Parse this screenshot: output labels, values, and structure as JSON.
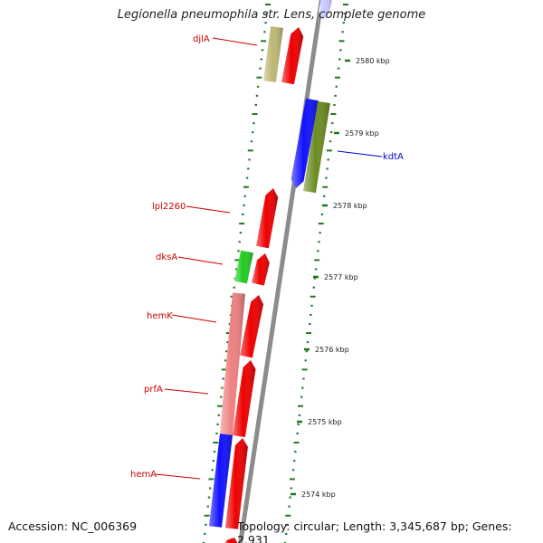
{
  "title": "Legionella pneumophila str. Lens, complete genome",
  "footer": {
    "accession": "Accession: NC_006369",
    "summary": "Topology: circular; Length: 3,345,687 bp; Genes: 2,931"
  },
  "colors": {
    "background": "#ffffff",
    "backbone": "#8c8c8c",
    "tick": "#1e7a1e",
    "label_red": "#cc0000",
    "label_blue": "#0000cc"
  },
  "scale_labels": [
    "2580 kbp",
    "2579 kbp",
    "2578 kbp",
    "2577 kbp",
    "2576 kbp",
    "2575 kbp",
    "2574 kbp"
  ],
  "genes": [
    {
      "name": "djlA",
      "color": "#cc0000"
    },
    {
      "name": "kdtA",
      "color": "#0000cc"
    },
    {
      "name": "lpl2260",
      "color": "#cc0000"
    },
    {
      "name": "dksA",
      "color": "#cc0000"
    },
    {
      "name": "hemK",
      "color": "#cc0000"
    },
    {
      "name": "prfA",
      "color": "#cc0000"
    },
    {
      "name": "hemA",
      "color": "#cc0000"
    }
  ]
}
